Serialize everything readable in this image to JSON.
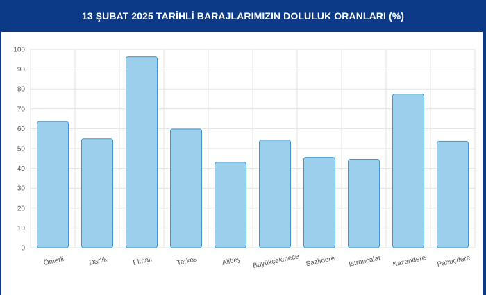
{
  "header": {
    "title": "13 ŞUBAT 2025 TARİHLİ BARAJLARIMIZIN DOLULUK ORANLARI (%)"
  },
  "chart_data": {
    "type": "bar",
    "title": "13 ŞUBAT 2025 TARİHLİ BARAJLARIMIZIN DOLULUK ORANLARI (%)",
    "categories": [
      "Ömerli",
      "Darlık",
      "Elmalı",
      "Terkos",
      "Alibey",
      "Büyükçekmece",
      "Sazlıdere",
      "Istrancalar",
      "Kazandere",
      "Pabuçdere"
    ],
    "values": [
      63.6,
      55.0,
      96.3,
      59.8,
      43.1,
      54.3,
      45.6,
      44.6,
      77.4,
      53.7
    ],
    "ylim": [
      0,
      100
    ],
    "yticks": [
      0,
      10,
      20,
      30,
      40,
      50,
      60,
      70,
      80,
      90,
      100
    ],
    "grid": true,
    "colors": {
      "bar_fill": "#9bcfec",
      "bar_stroke": "#3a9ad0",
      "grid": "#e3e3e3",
      "header_bg": "#0c3a86"
    }
  }
}
